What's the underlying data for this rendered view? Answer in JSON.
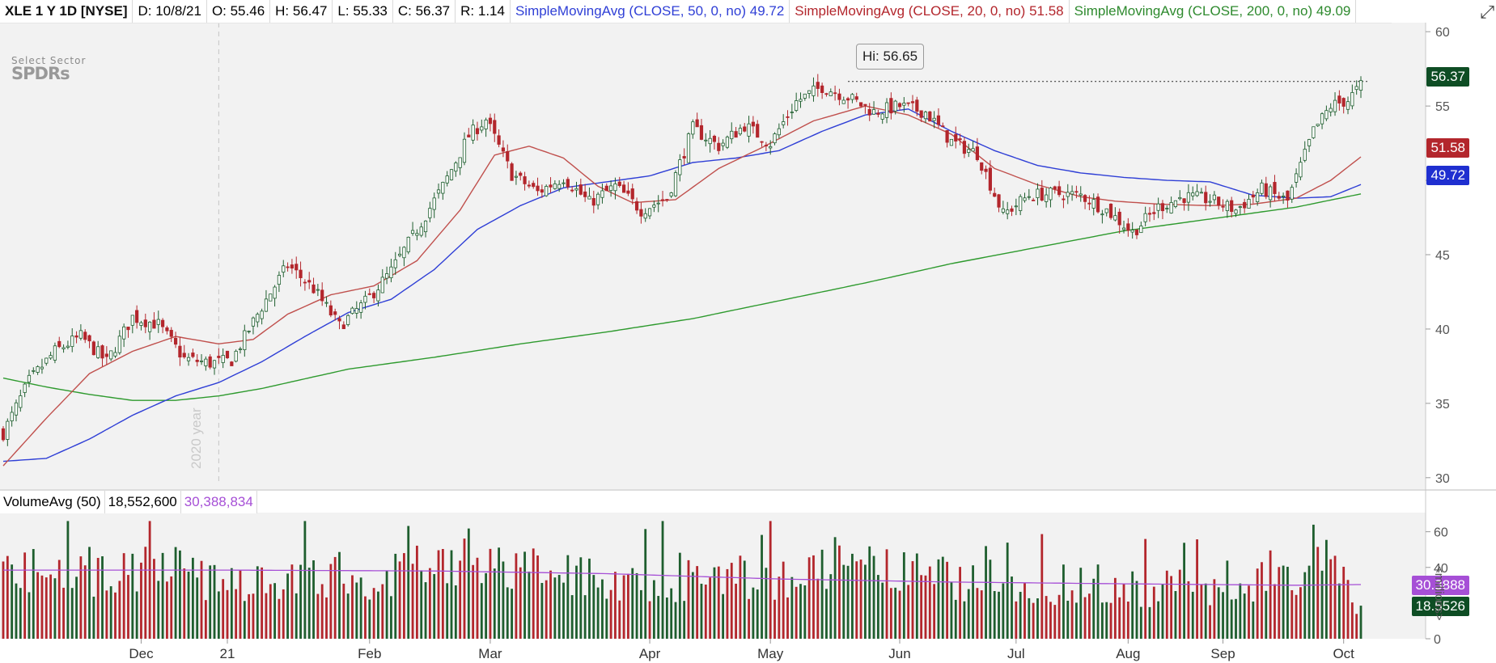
{
  "header": {
    "symbol": "XLE 1 Y 1D [NYSE]",
    "date": "D: 10/8/21",
    "open": "O: 55.46",
    "high": "H: 56.47",
    "low": "L: 55.33",
    "close": "C: 56.37",
    "range": "R: 1.14",
    "sma50_label": "SimpleMovingAvg (CLOSE, 50, 0, no)",
    "sma50_value": "49.72",
    "sma20_label": "SimpleMovingAvg (CLOSE, 20, 0, no)",
    "sma20_value": "51.58",
    "sma200_label": "SimpleMovingAvg (CLOSE, 200, 0, no)",
    "sma200_value": "49.09"
  },
  "logo": {
    "line1": "Select Sector",
    "line2": "SPDRs"
  },
  "annotations": {
    "year": "2020 year",
    "high": "Hi: 56.65"
  },
  "price_tags": {
    "last": "56.37",
    "sma20": "51.58",
    "sma50": "49.72"
  },
  "volume_header": {
    "label": "VolumeAvg (50)",
    "value": "18,552,600",
    "avg": "30,388,834"
  },
  "volume_tags": {
    "avg": "30.3888",
    "last": "18.5526"
  },
  "volume_unit": "<millions>",
  "colors": {
    "up": "#1e5e2e",
    "down": "#b3262c",
    "sma50": "#2f3fd6",
    "sma20": "#c0504d",
    "sma200": "#2e9a2e",
    "vol_avg": "#a64fd6",
    "tag_last": "#0e4d24",
    "tag_sma20": "#b3262c",
    "tag_sma50": "#1f2fd0",
    "tag_vol_avg": "#a64fd6"
  },
  "chart_data": {
    "type": "candlestick",
    "title": "XLE 1 Y 1D [NYSE]",
    "x_labels": [
      "Dec",
      "21",
      "Feb",
      "Mar",
      "Apr",
      "May",
      "Jun",
      "Jul",
      "Aug",
      "Sep",
      "Oct"
    ],
    "y_ticks": [
      30,
      35,
      40,
      45,
      50,
      55,
      60
    ],
    "ylim": [
      29.5,
      60.5
    ],
    "volume_ticks": [
      0,
      20,
      40,
      60
    ],
    "volume_ylim": [
      0,
      68
    ],
    "price_path": [
      [
        0,
        33.0
      ],
      [
        6,
        36.5
      ],
      [
        12,
        38.5
      ],
      [
        18,
        39.5
      ],
      [
        24,
        37.8
      ],
      [
        30,
        40.8
      ],
      [
        36,
        40.3
      ],
      [
        42,
        38.0
      ],
      [
        48,
        37.7
      ],
      [
        53,
        37.9
      ],
      [
        60,
        41.5
      ],
      [
        66,
        44.3
      ],
      [
        72,
        42.7
      ],
      [
        78,
        40.2
      ],
      [
        84,
        41.8
      ],
      [
        90,
        43.9
      ],
      [
        96,
        46.7
      ],
      [
        102,
        49.6
      ],
      [
        108,
        53.0
      ],
      [
        112,
        54.1
      ],
      [
        118,
        50.4
      ],
      [
        124,
        49.2
      ],
      [
        130,
        50.2
      ],
      [
        136,
        48.5
      ],
      [
        142,
        49.6
      ],
      [
        148,
        48.0
      ],
      [
        154,
        48.8
      ],
      [
        160,
        53.5
      ],
      [
        166,
        52.3
      ],
      [
        172,
        53.7
      ],
      [
        178,
        52.5
      ],
      [
        184,
        55.3
      ],
      [
        190,
        56.3
      ],
      [
        196,
        55.6
      ],
      [
        202,
        54.6
      ],
      [
        208,
        55.0
      ],
      [
        214,
        54.6
      ],
      [
        220,
        52.6
      ],
      [
        226,
        51.8
      ],
      [
        232,
        47.7
      ],
      [
        238,
        49.0
      ],
      [
        244,
        49.1
      ],
      [
        250,
        49.0
      ],
      [
        256,
        48.0
      ],
      [
        262,
        46.5
      ],
      [
        268,
        48.2
      ],
      [
        274,
        48.9
      ],
      [
        280,
        48.7
      ],
      [
        286,
        48.0
      ],
      [
        292,
        49.4
      ],
      [
        298,
        48.6
      ],
      [
        304,
        53.3
      ],
      [
        308,
        55.0
      ],
      [
        312,
        55.4
      ],
      [
        315,
        56.37
      ]
    ],
    "sma20_path": [
      [
        0,
        30.8
      ],
      [
        10,
        34.0
      ],
      [
        20,
        37.0
      ],
      [
        30,
        38.5
      ],
      [
        40,
        39.5
      ],
      [
        50,
        39.0
      ],
      [
        58,
        39.3
      ],
      [
        66,
        41.0
      ],
      [
        76,
        42.3
      ],
      [
        86,
        42.9
      ],
      [
        96,
        44.6
      ],
      [
        106,
        48.0
      ],
      [
        114,
        51.7
      ],
      [
        122,
        52.3
      ],
      [
        130,
        51.5
      ],
      [
        138,
        49.6
      ],
      [
        146,
        48.5
      ],
      [
        156,
        48.7
      ],
      [
        166,
        50.8
      ],
      [
        176,
        52.2
      ],
      [
        188,
        54.0
      ],
      [
        200,
        55.0
      ],
      [
        210,
        54.4
      ],
      [
        220,
        53.1
      ],
      [
        230,
        50.8
      ],
      [
        240,
        49.7
      ],
      [
        250,
        48.9
      ],
      [
        258,
        48.6
      ],
      [
        268,
        48.4
      ],
      [
        280,
        48.3
      ],
      [
        290,
        48.4
      ],
      [
        300,
        48.8
      ],
      [
        308,
        50.0
      ],
      [
        315,
        51.58
      ]
    ],
    "sma50_path": [
      [
        0,
        31.1
      ],
      [
        10,
        31.3
      ],
      [
        20,
        32.6
      ],
      [
        30,
        34.2
      ],
      [
        40,
        35.5
      ],
      [
        50,
        36.4
      ],
      [
        60,
        37.8
      ],
      [
        70,
        39.5
      ],
      [
        80,
        41.1
      ],
      [
        90,
        42.0
      ],
      [
        100,
        44.0
      ],
      [
        110,
        46.7
      ],
      [
        120,
        48.3
      ],
      [
        130,
        49.5
      ],
      [
        140,
        49.9
      ],
      [
        150,
        50.3
      ],
      [
        160,
        51.2
      ],
      [
        170,
        51.5
      ],
      [
        180,
        52.0
      ],
      [
        190,
        53.3
      ],
      [
        200,
        54.4
      ],
      [
        210,
        54.8
      ],
      [
        220,
        53.3
      ],
      [
        230,
        52.0
      ],
      [
        240,
        51.0
      ],
      [
        250,
        50.5
      ],
      [
        260,
        50.2
      ],
      [
        270,
        50.0
      ],
      [
        280,
        49.9
      ],
      [
        290,
        49.0
      ],
      [
        300,
        48.8
      ],
      [
        308,
        48.9
      ],
      [
        315,
        49.72
      ]
    ],
    "sma200_path": [
      [
        0,
        36.7
      ],
      [
        10,
        36.1
      ],
      [
        20,
        35.6
      ],
      [
        30,
        35.2
      ],
      [
        40,
        35.2
      ],
      [
        50,
        35.5
      ],
      [
        60,
        36.0
      ],
      [
        80,
        37.3
      ],
      [
        100,
        38.1
      ],
      [
        120,
        39.0
      ],
      [
        140,
        39.8
      ],
      [
        160,
        40.7
      ],
      [
        180,
        41.9
      ],
      [
        200,
        43.1
      ],
      [
        220,
        44.4
      ],
      [
        240,
        45.5
      ],
      [
        260,
        46.6
      ],
      [
        280,
        47.4
      ],
      [
        300,
        48.2
      ],
      [
        315,
        49.09
      ]
    ],
    "volume_avg_path": [
      [
        0,
        38.5
      ],
      [
        50,
        38.5
      ],
      [
        100,
        38.0
      ],
      [
        140,
        36.5
      ],
      [
        180,
        33.5
      ],
      [
        220,
        31.8
      ],
      [
        260,
        30.8
      ],
      [
        300,
        30.0
      ],
      [
        315,
        30.39
      ]
    ],
    "volume_path": [
      [
        0,
        40
      ],
      [
        30,
        42
      ],
      [
        60,
        36
      ],
      [
        90,
        40
      ],
      [
        110,
        45
      ],
      [
        130,
        38
      ],
      [
        160,
        36
      ],
      [
        180,
        38
      ],
      [
        200,
        42
      ],
      [
        220,
        36
      ],
      [
        240,
        34
      ],
      [
        260,
        32
      ],
      [
        280,
        30
      ],
      [
        300,
        42
      ],
      [
        305,
        60
      ],
      [
        310,
        45
      ],
      [
        315,
        18.55
      ]
    ],
    "annotations": {
      "high_value": 56.65,
      "year_divider_index": 50
    }
  }
}
